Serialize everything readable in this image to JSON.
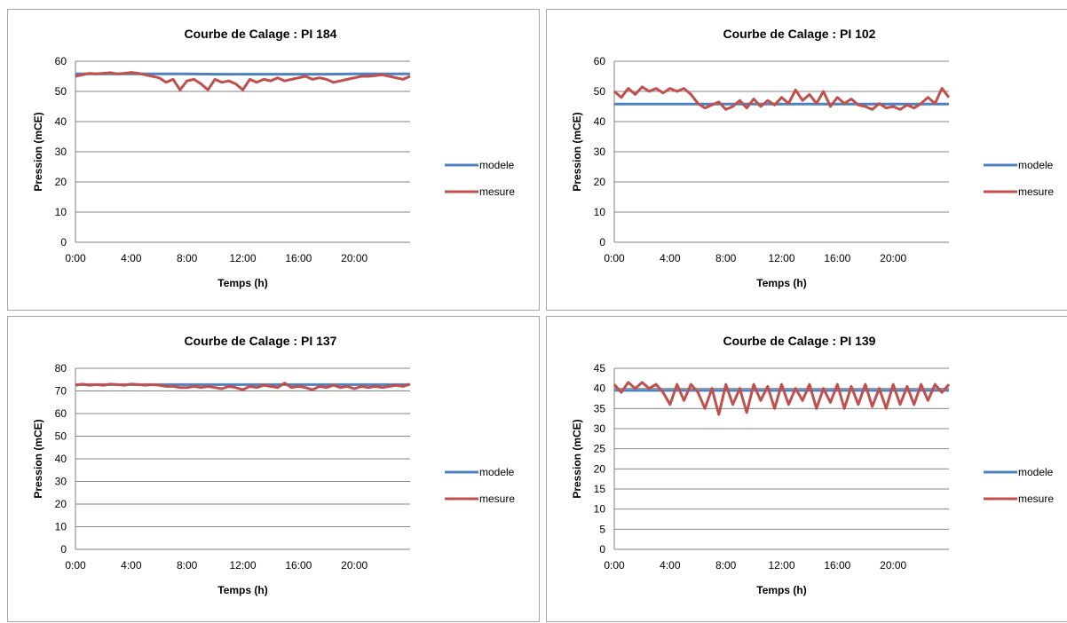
{
  "colors": {
    "modele": "#4f81bd",
    "mesure": "#c0504d",
    "grid": "#868686"
  },
  "chart_data": [
    {
      "type": "line",
      "title": "Courbe de Calage : PI 184",
      "xlabel": "Temps (h)",
      "ylabel": "Pression (mCE)",
      "xlim": [
        0,
        24
      ],
      "ylim": [
        0,
        60
      ],
      "yticks": [
        0,
        10,
        20,
        30,
        40,
        50,
        60
      ],
      "xticks": [
        0,
        4,
        8,
        12,
        16,
        20
      ],
      "xtick_labels": [
        "0:00",
        "4:00",
        "8:00",
        "12:00",
        "16:00",
        "20:00"
      ],
      "grid": true,
      "legend": "right",
      "series": [
        {
          "name": "modele",
          "x": [
            0,
            2,
            4,
            6,
            8,
            10,
            12,
            14,
            16,
            18,
            20,
            22,
            24
          ],
          "values": [
            55.8,
            55.8,
            55.8,
            55.8,
            55.8,
            55.7,
            55.7,
            55.7,
            55.7,
            55.7,
            55.8,
            55.8,
            55.8
          ]
        },
        {
          "name": "mesure",
          "x": [
            0,
            0.5,
            1,
            1.5,
            2,
            2.5,
            3,
            3.5,
            4,
            4.5,
            5,
            5.5,
            6,
            6.5,
            7,
            7.5,
            8,
            8.5,
            9,
            9.5,
            10,
            10.5,
            11,
            11.5,
            12,
            12.5,
            13,
            13.5,
            14,
            14.5,
            15,
            15.5,
            16,
            16.5,
            17,
            17.5,
            18,
            18.5,
            19,
            19.5,
            20,
            20.5,
            21,
            21.5,
            22,
            22.5,
            23,
            23.5,
            24
          ],
          "values": [
            55,
            55.5,
            56,
            55.8,
            56,
            56.2,
            55.8,
            56,
            56.3,
            56,
            55.5,
            55,
            54.5,
            53,
            54,
            50.5,
            53.5,
            54,
            52.5,
            50.5,
            54,
            53,
            53.5,
            52.5,
            50.5,
            54,
            53,
            54,
            53.5,
            54.5,
            53.5,
            54,
            54.5,
            55,
            54,
            54.5,
            54,
            53,
            53.5,
            54,
            54.5,
            55,
            55,
            55.2,
            55.5,
            55,
            54.5,
            54,
            55
          ]
        }
      ]
    },
    {
      "type": "line",
      "title": "Courbe de Calage : PI 102",
      "xlabel": "Temps (h)",
      "ylabel": "Pression (mCE)",
      "xlim": [
        0,
        24
      ],
      "ylim": [
        0,
        60
      ],
      "yticks": [
        0,
        10,
        20,
        30,
        40,
        50,
        60
      ],
      "xticks": [
        0,
        4,
        8,
        12,
        16,
        20
      ],
      "xtick_labels": [
        "0:00",
        "4:00",
        "8:00",
        "12:00",
        "16:00",
        "20:00"
      ],
      "grid": true,
      "legend": "right",
      "series": [
        {
          "name": "modele",
          "x": [
            0,
            2,
            4,
            6,
            8,
            10,
            12,
            14,
            16,
            18,
            20,
            22,
            24
          ],
          "values": [
            45.8,
            45.8,
            45.8,
            45.8,
            45.8,
            45.8,
            45.8,
            45.8,
            45.8,
            45.8,
            45.8,
            45.8,
            45.8
          ]
        },
        {
          "name": "mesure",
          "x": [
            0,
            0.5,
            1,
            1.5,
            2,
            2.5,
            3,
            3.5,
            4,
            4.5,
            5,
            5.5,
            6,
            6.5,
            7,
            7.5,
            8,
            8.5,
            9,
            9.5,
            10,
            10.5,
            11,
            11.5,
            12,
            12.5,
            13,
            13.5,
            14,
            14.5,
            15,
            15.5,
            16,
            16.5,
            17,
            17.5,
            18,
            18.5,
            19,
            19.5,
            20,
            20.5,
            21,
            21.5,
            22,
            22.5,
            23,
            23.5,
            24
          ],
          "values": [
            50,
            48,
            51,
            49,
            51.5,
            50,
            51,
            49.5,
            51,
            50,
            51,
            49,
            46,
            44.5,
            45.5,
            46.5,
            44,
            45,
            47,
            44.5,
            47.5,
            45,
            47,
            45.5,
            48,
            46,
            50.5,
            47,
            49,
            46,
            50,
            45,
            48,
            46,
            47.5,
            45.5,
            45,
            44,
            46,
            44.5,
            45,
            44,
            45.5,
            44.5,
            46,
            48,
            46,
            51,
            48
          ]
        }
      ]
    },
    {
      "type": "line",
      "title": "Courbe de Calage : PI 137",
      "xlabel": "Temps (h)",
      "ylabel": "Pression (mCE)",
      "xlim": [
        0,
        24
      ],
      "ylim": [
        0,
        80
      ],
      "yticks": [
        0,
        10,
        20,
        30,
        40,
        50,
        60,
        70,
        80
      ],
      "xticks": [
        0,
        4,
        8,
        12,
        16,
        20
      ],
      "xtick_labels": [
        "0:00",
        "4:00",
        "8:00",
        "12:00",
        "16:00",
        "20:00"
      ],
      "grid": true,
      "legend": "right",
      "series": [
        {
          "name": "modele",
          "x": [
            0,
            2,
            4,
            6,
            8,
            10,
            12,
            14,
            16,
            18,
            20,
            22,
            24
          ],
          "values": [
            72.8,
            72.8,
            72.8,
            72.8,
            72.8,
            72.8,
            72.8,
            72.8,
            72.8,
            72.8,
            72.8,
            72.8,
            72.8
          ]
        },
        {
          "name": "mesure",
          "x": [
            0,
            0.5,
            1,
            1.5,
            2,
            2.5,
            3,
            3.5,
            4,
            4.5,
            5,
            5.5,
            6,
            6.5,
            7,
            7.5,
            8,
            8.5,
            9,
            9.5,
            10,
            10.5,
            11,
            11.5,
            12,
            12.5,
            13,
            13.5,
            14,
            14.5,
            15,
            15.5,
            16,
            16.5,
            17,
            17.5,
            18,
            18.5,
            19,
            19.5,
            20,
            20.5,
            21,
            21.5,
            22,
            22.5,
            23,
            23.5,
            24
          ],
          "values": [
            72.5,
            73,
            72.5,
            72.8,
            72.5,
            73,
            72.8,
            72.5,
            73,
            72.8,
            72.5,
            72.8,
            72.5,
            72,
            72,
            71.5,
            71.5,
            72,
            71.5,
            72,
            71.5,
            71,
            72,
            71.5,
            70.5,
            72,
            71.5,
            72.5,
            72,
            71.5,
            73.5,
            71.5,
            72,
            71.5,
            70.5,
            72,
            71.5,
            72.5,
            71.5,
            72,
            71,
            72,
            71.5,
            72,
            71.5,
            72,
            72.5,
            72,
            73
          ]
        }
      ]
    },
    {
      "type": "line",
      "title": "Courbe de Calage : PI 139",
      "xlabel": "Temps (h)",
      "ylabel": "Pression (mCE)",
      "xlim": [
        0,
        24
      ],
      "ylim": [
        0,
        45
      ],
      "yticks": [
        0,
        5,
        10,
        15,
        20,
        25,
        30,
        35,
        40,
        45
      ],
      "xticks": [
        0,
        4,
        8,
        12,
        16,
        20
      ],
      "xtick_labels": [
        "0:00",
        "4:00",
        "8:00",
        "12:00",
        "16:00",
        "20:00"
      ],
      "grid": true,
      "legend": "right",
      "series": [
        {
          "name": "modele",
          "x": [
            0,
            2,
            4,
            6,
            8,
            10,
            12,
            14,
            16,
            18,
            20,
            22,
            24
          ],
          "values": [
            39.5,
            39.5,
            39.5,
            39.5,
            39.5,
            39.5,
            39.5,
            39.5,
            39.5,
            39.5,
            39.5,
            39.5,
            39.5
          ]
        },
        {
          "name": "mesure",
          "x": [
            0,
            0.5,
            1,
            1.5,
            2,
            2.5,
            3,
            3.5,
            4,
            4.5,
            5,
            5.5,
            6,
            6.5,
            7,
            7.5,
            8,
            8.5,
            9,
            9.5,
            10,
            10.5,
            11,
            11.5,
            12,
            12.5,
            13,
            13.5,
            14,
            14.5,
            15,
            15.5,
            16,
            16.5,
            17,
            17.5,
            18,
            18.5,
            19,
            19.5,
            20,
            20.5,
            21,
            21.5,
            22,
            22.5,
            23,
            23.5,
            24
          ],
          "values": [
            41,
            39,
            41.5,
            40,
            41.5,
            40,
            41,
            39,
            36,
            41,
            37,
            41,
            39,
            35,
            40,
            33.5,
            41,
            36,
            40,
            34,
            41,
            37,
            40.5,
            35,
            41,
            36,
            40,
            37,
            41,
            35,
            40,
            36.5,
            41,
            35,
            40.5,
            36,
            41,
            35.5,
            40,
            35,
            41,
            36,
            40.5,
            36,
            41,
            37,
            41,
            39,
            41
          ]
        }
      ]
    }
  ]
}
